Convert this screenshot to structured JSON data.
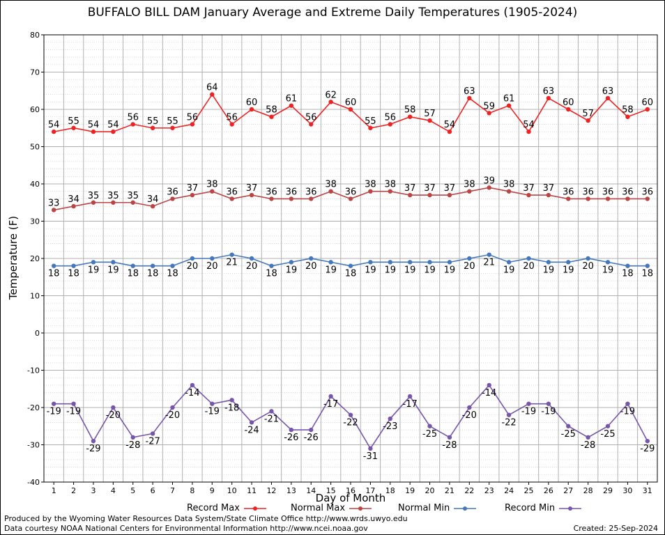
{
  "chart_data": {
    "type": "line",
    "title": "BUFFALO BILL DAM January Average and Extreme Daily Temperatures (1905-2024)",
    "xlabel": "Day of Month",
    "ylabel": "Temperature (F)",
    "x": [
      1,
      2,
      3,
      4,
      5,
      6,
      7,
      8,
      9,
      10,
      11,
      12,
      13,
      14,
      15,
      16,
      17,
      18,
      19,
      20,
      21,
      22,
      23,
      24,
      25,
      26,
      27,
      28,
      29,
      30,
      31
    ],
    "ylim": [
      -40,
      80
    ],
    "yticks": [
      -40,
      -30,
      -20,
      -10,
      0,
      10,
      20,
      30,
      40,
      50,
      60,
      70,
      80
    ],
    "grid": true,
    "legend_position": "bottom",
    "series": [
      {
        "name": "Record Max",
        "color": "#ee2222",
        "label_position": "above",
        "values": [
          54,
          55,
          54,
          54,
          56,
          55,
          55,
          56,
          64,
          56,
          60,
          58,
          61,
          56,
          62,
          60,
          55,
          56,
          58,
          57,
          54,
          63,
          59,
          61,
          54,
          63,
          60,
          57,
          63,
          58,
          60
        ]
      },
      {
        "name": "Normal Max",
        "color": "#bb4444",
        "label_position": "above",
        "values": [
          33,
          34,
          35,
          35,
          35,
          34,
          36,
          37,
          38,
          36,
          37,
          36,
          36,
          36,
          38,
          36,
          38,
          38,
          37,
          37,
          37,
          38,
          39,
          38,
          37,
          37,
          36,
          36,
          36,
          36,
          36
        ]
      },
      {
        "name": "Normal Min",
        "color": "#4477bb",
        "label_position": "below",
        "values": [
          18,
          18,
          19,
          19,
          18,
          18,
          18,
          20,
          20,
          21,
          20,
          18,
          19,
          20,
          19,
          18,
          19,
          19,
          19,
          19,
          19,
          20,
          21,
          19,
          20,
          19,
          19,
          20,
          19,
          18,
          18
        ]
      },
      {
        "name": "Record Min",
        "color": "#7755aa",
        "label_position": "below",
        "values": [
          -19,
          -19,
          -29,
          -20,
          -28,
          -27,
          -20,
          -14,
          -19,
          -18,
          -24,
          -21,
          -26,
          -26,
          -17,
          -22,
          -31,
          -23,
          -17,
          -25,
          -28,
          -20,
          -14,
          -22,
          -19,
          -19,
          -25,
          -28,
          -25,
          -19,
          -29
        ]
      }
    ]
  },
  "footer": {
    "line1": "Produced by the Wyoming Water Resources Data System/State Climate Office http://www.wrds.uwyo.edu",
    "line2": "Data courtesy NOAA National Centers for Environmental Information http://www.ncei.noaa.gov",
    "created": "Created:  25-Sep-2024"
  }
}
